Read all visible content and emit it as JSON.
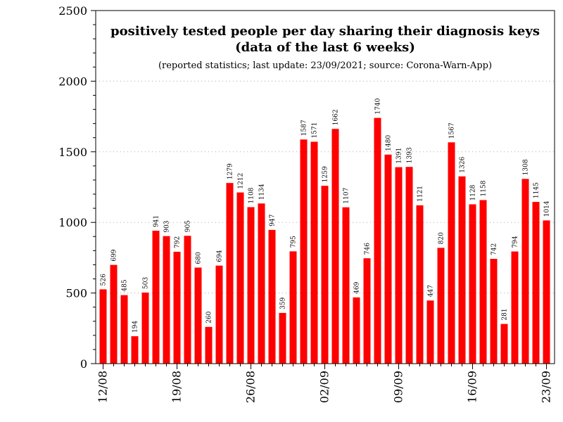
{
  "chart_data": {
    "type": "bar",
    "title_line1": "positively tested people per day sharing their diagnosis keys",
    "title_line2": "(data of the last 6 weeks)",
    "subtitle": "(reported statistics; last update: 23/09/2021; source: Corona-Warn-App)",
    "xlabel": "",
    "ylabel": "",
    "ylim": [
      0,
      2500
    ],
    "yticks": [
      0,
      500,
      1000,
      1500,
      2000,
      2500
    ],
    "grid": "horizontal-dotted",
    "bar_color": "#ff0000",
    "categories": [
      "12/08",
      "13/08",
      "14/08",
      "15/08",
      "16/08",
      "17/08",
      "18/08",
      "19/08",
      "20/08",
      "21/08",
      "22/08",
      "23/08",
      "24/08",
      "25/08",
      "26/08",
      "27/08",
      "28/08",
      "29/08",
      "30/08",
      "31/08",
      "01/09",
      "02/09",
      "03/09",
      "04/09",
      "05/09",
      "06/09",
      "07/09",
      "08/09",
      "09/09",
      "10/09",
      "11/09",
      "12/09",
      "13/09",
      "14/09",
      "15/09",
      "16/09",
      "17/09",
      "18/09",
      "19/09",
      "20/09",
      "21/09",
      "22/09",
      "23/09"
    ],
    "values": [
      526,
      699,
      485,
      194,
      503,
      941,
      903,
      792,
      905,
      680,
      260,
      694,
      1279,
      1212,
      1108,
      1134,
      947,
      359,
      795,
      1587,
      1571,
      1259,
      1662,
      1107,
      469,
      746,
      1740,
      1480,
      1391,
      1393,
      1121,
      447,
      820,
      1567,
      1326,
      1128,
      1158,
      742,
      281,
      794,
      1308,
      1145,
      1014
    ],
    "x_tick_labels": [
      {
        "index": 0,
        "label": "12/08"
      },
      {
        "index": 7,
        "label": "19/08"
      },
      {
        "index": 14,
        "label": "26/08"
      },
      {
        "index": 21,
        "label": "02/09"
      },
      {
        "index": 28,
        "label": "09/09"
      },
      {
        "index": 35,
        "label": "16/09"
      },
      {
        "index": 42,
        "label": "23/09"
      }
    ]
  }
}
